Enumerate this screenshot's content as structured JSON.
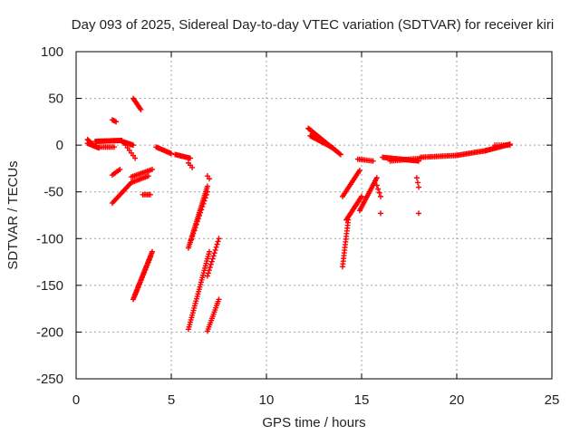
{
  "chart_data": {
    "type": "scatter",
    "title": "Day 093 of 2025, Sidereal Day-to-day VTEC variation (SDTVAR) for receiver kiri",
    "xlabel": "GPS time / hours",
    "ylabel": "SDTVAR / TECUs",
    "xlim": [
      0,
      25
    ],
    "ylim": [
      -250,
      100
    ],
    "xticks": [
      0,
      5,
      10,
      15,
      20,
      25
    ],
    "yticks": [
      100,
      50,
      0,
      -50,
      -100,
      -150,
      -200,
      -250
    ],
    "grid": true,
    "marker": "+",
    "colors": {
      "points": "#ff0000",
      "grid": "#a0a0a0",
      "axes": "#000000"
    },
    "segments": [
      {
        "x0": 0.6,
        "y0": 2,
        "x1": 1.2,
        "y1": -3,
        "n": 14
      },
      {
        "x0": 0.6,
        "y0": 6,
        "x1": 0.9,
        "y1": 0,
        "n": 8
      },
      {
        "x0": 1.0,
        "y0": 4,
        "x1": 2.4,
        "y1": 5,
        "n": 28
      },
      {
        "x0": 1.2,
        "y0": -2,
        "x1": 2.0,
        "y1": -2,
        "n": 10
      },
      {
        "x0": 2.4,
        "y0": 4,
        "x1": 3.0,
        "y1": 0,
        "n": 12
      },
      {
        "x0": 1.9,
        "y0": 27,
        "x1": 2.1,
        "y1": 25,
        "n": 4
      },
      {
        "x0": 1.9,
        "y0": -32,
        "x1": 2.3,
        "y1": -26,
        "n": 6
      },
      {
        "x0": 1.9,
        "y0": -62,
        "x1": 2.9,
        "y1": -40,
        "n": 16
      },
      {
        "x0": 2.9,
        "y0": -40,
        "x1": 3.8,
        "y1": -33,
        "n": 12
      },
      {
        "x0": 2.9,
        "y0": -34,
        "x1": 4.0,
        "y1": -26,
        "n": 14
      },
      {
        "x0": 3.0,
        "y0": 50,
        "x1": 3.4,
        "y1": 38,
        "n": 10
      },
      {
        "x0": 2.6,
        "y0": 0,
        "x1": 3.1,
        "y1": -14,
        "n": 6
      },
      {
        "x0": 3.5,
        "y0": -53,
        "x1": 3.9,
        "y1": -53,
        "n": 6
      },
      {
        "x0": 3.0,
        "y0": -165,
        "x1": 4.0,
        "y1": -114,
        "n": 34
      },
      {
        "x0": 3.1,
        "y0": -160,
        "x1": 3.9,
        "y1": -120,
        "n": 16
      },
      {
        "x0": 4.2,
        "y0": -2,
        "x1": 5.0,
        "y1": -9,
        "n": 14
      },
      {
        "x0": 5.2,
        "y0": -10,
        "x1": 6.0,
        "y1": -14,
        "n": 14
      },
      {
        "x0": 5.9,
        "y0": -19,
        "x1": 6.1,
        "y1": -24,
        "n": 3
      },
      {
        "x0": 5.9,
        "y0": -110,
        "x1": 6.9,
        "y1": -44,
        "n": 34
      },
      {
        "x0": 6.0,
        "y0": -104,
        "x1": 6.9,
        "y1": -50,
        "n": 18
      },
      {
        "x0": 5.9,
        "y0": -197,
        "x1": 7.0,
        "y1": -114,
        "n": 34
      },
      {
        "x0": 6.9,
        "y0": -199,
        "x1": 7.5,
        "y1": -165,
        "n": 16
      },
      {
        "x0": 6.9,
        "y0": -140,
        "x1": 7.5,
        "y1": -100,
        "n": 14
      },
      {
        "x0": 6.9,
        "y0": -33,
        "x1": 7.0,
        "y1": -36,
        "n": 2
      },
      {
        "x0": 12.2,
        "y0": 18,
        "x1": 13.1,
        "y1": 3,
        "n": 22
      },
      {
        "x0": 12.3,
        "y0": 10,
        "x1": 13.5,
        "y1": -3,
        "n": 22
      },
      {
        "x0": 13.1,
        "y0": 3,
        "x1": 13.9,
        "y1": -10,
        "n": 16
      },
      {
        "x0": 14.0,
        "y0": -130,
        "x1": 14.3,
        "y1": -80,
        "n": 18
      },
      {
        "x0": 14.2,
        "y0": -80,
        "x1": 15.0,
        "y1": -55,
        "n": 20
      },
      {
        "x0": 14.0,
        "y0": -55,
        "x1": 14.9,
        "y1": -27,
        "n": 18
      },
      {
        "x0": 14.9,
        "y0": -70,
        "x1": 15.8,
        "y1": -35,
        "n": 22
      },
      {
        "x0": 14.8,
        "y0": -15,
        "x1": 15.6,
        "y1": -17,
        "n": 10
      },
      {
        "x0": 15.8,
        "y0": -43,
        "x1": 16.0,
        "y1": -55,
        "n": 4
      },
      {
        "x0": 16.0,
        "y0": -73,
        "x1": 16.0,
        "y1": -73,
        "n": 1
      },
      {
        "x0": 16.1,
        "y0": -13,
        "x1": 18.0,
        "y1": -17,
        "n": 30
      },
      {
        "x0": 16.5,
        "y0": -17,
        "x1": 18.1,
        "y1": -14,
        "n": 18
      },
      {
        "x0": 17.9,
        "y0": -35,
        "x1": 18.0,
        "y1": -45,
        "n": 3
      },
      {
        "x0": 18.0,
        "y0": -73,
        "x1": 18.0,
        "y1": -73,
        "n": 1
      },
      {
        "x0": 18.1,
        "y0": -13,
        "x1": 20.0,
        "y1": -11,
        "n": 24
      },
      {
        "x0": 20.0,
        "y0": -11,
        "x1": 21.5,
        "y1": -6,
        "n": 22
      },
      {
        "x0": 21.5,
        "y0": -6,
        "x1": 22.8,
        "y1": 1,
        "n": 22
      },
      {
        "x0": 22.0,
        "y0": 0,
        "x1": 22.8,
        "y1": 0,
        "n": 8
      }
    ]
  }
}
